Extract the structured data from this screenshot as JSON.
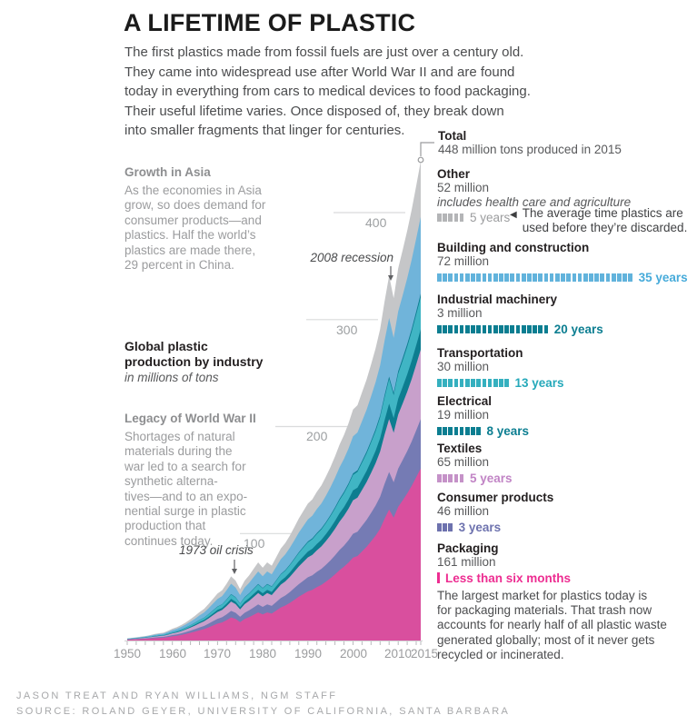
{
  "title": "A LIFETIME OF PLASTIC",
  "intro": "The first plastics made from fossil fuels are just over a century old.\nThey came into widespread use after World War II and are found\ntoday in everything from cars to medical devices to food packaging.\nTheir useful lifetime varies. Once disposed of, they break down\ninto smaller fragments that linger for centuries.",
  "annotations": {
    "growth_asia": {
      "heading": "Growth in Asia",
      "body": "As the economies in Asia\ngrow, so does demand for\nconsumer products—and\nplastics. Half the world’s\nplastics are made there,\n29 percent in China."
    },
    "chart_heading": {
      "main": "Global plastic\nproduction by industry",
      "subtitle": "in millions of tons"
    },
    "legacy_ww2": {
      "heading": "Legacy of World War II",
      "body": "Shortages of natural\nmaterials during the\nwar led to a search for\nsynthetic alterna-\ntives—and to an expo-\nnential surge in plastic\nproduction that\ncontinues today."
    },
    "recession": "2008 recession",
    "oil_crisis": "1973 oil crisis",
    "total": {
      "heading": "Total",
      "desc": "448 million tons produced in 2015"
    },
    "discard_marker": "◀",
    "discard_note": "The average time plastics are\nused before they’re discarded."
  },
  "legend": {
    "entries": [
      {
        "name": "Other",
        "value": "52 million",
        "note": "includes health care and agriculture",
        "ticks": 5,
        "tick_color": "#b4b5b7",
        "years": "5 years",
        "years_color": "#9b9c9e"
      },
      {
        "name": "Building and construction",
        "value": "72 million",
        "ticks": 35,
        "tick_color": "#62b3dc",
        "years": "35 years",
        "years_color": "#47abda"
      },
      {
        "name": "Industrial machinery",
        "value": "3 million",
        "ticks": 20,
        "tick_color": "#0c7e91",
        "years": "20 years",
        "years_color": "#0c7e91"
      },
      {
        "name": "Transportation",
        "value": "30 million",
        "ticks": 13,
        "tick_color": "#35b0bf",
        "years": "13 years",
        "years_color": "#26a9ba"
      },
      {
        "name": "Electrical",
        "value": "19 million",
        "ticks": 8,
        "tick_color": "#0c7e91",
        "years": "8 years",
        "years_color": "#0c7e91"
      },
      {
        "name": "Textiles",
        "value": "65 million",
        "ticks": 5,
        "tick_color": "#c592c8",
        "years": "5 years",
        "years_color": "#c184c5"
      },
      {
        "name": "Consumer products",
        "value": "46 million",
        "ticks": 3,
        "tick_color": "#6d72ae",
        "years": "3 years",
        "years_color": "#6d72ae"
      },
      {
        "name": "Packaging",
        "value": "161 million",
        "ticks": 0,
        "tick_color": "#ed2d91",
        "years": "Less than six months",
        "years_color": "#ed2d91"
      }
    ],
    "packaging_note": "The largest market for plastics today is\nfor packaging materials. That trash now\naccounts for nearly half of all plastic waste\ngenerated globally; most of it never gets\nrecycled or incinerated."
  },
  "axis": {
    "x_labels": [
      "1950",
      "1960",
      "1970",
      "1980",
      "1990",
      "2000",
      "2010",
      "2015"
    ],
    "y_labels": [
      "100",
      "200",
      "300",
      "400"
    ]
  },
  "chart_data": {
    "type": "area",
    "title": "Global plastic production by industry",
    "ylabel": "millions of tons",
    "xlim": [
      1950,
      2015
    ],
    "ylim": [
      0,
      448
    ],
    "grid": "partial-left-ticks",
    "legend_position": "right",
    "annotations": [
      "1973 oil crisis",
      "2008 recession",
      "Total: 448 million tons produced in 2015"
    ],
    "years": [
      1950,
      1951,
      1952,
      1953,
      1954,
      1955,
      1956,
      1957,
      1958,
      1959,
      1960,
      1961,
      1962,
      1963,
      1964,
      1965,
      1966,
      1967,
      1968,
      1969,
      1970,
      1971,
      1972,
      1973,
      1974,
      1975,
      1976,
      1977,
      1978,
      1979,
      1980,
      1981,
      1982,
      1983,
      1984,
      1985,
      1986,
      1987,
      1988,
      1989,
      1990,
      1991,
      1992,
      1993,
      1994,
      1995,
      1996,
      1997,
      1998,
      1999,
      2000,
      2001,
      2002,
      2003,
      2004,
      2005,
      2006,
      2007,
      2008,
      2009,
      2010,
      2011,
      2012,
      2013,
      2014,
      2015
    ],
    "totals": [
      2,
      2.5,
      3,
      3.6,
      4.2,
      5,
      6,
      6.8,
      7.3,
      9,
      11,
      12.5,
      14.5,
      17,
      20,
      23,
      26.5,
      29.5,
      34,
      39,
      44,
      47,
      53,
      60,
      56,
      48,
      56,
      61,
      67,
      73,
      68,
      73,
      70,
      78,
      86,
      91,
      98,
      106,
      114,
      121,
      128,
      132,
      139,
      145,
      153,
      162,
      172,
      183,
      192,
      203,
      216,
      220,
      232,
      244,
      258,
      273,
      291,
      317,
      341,
      320,
      348,
      365,
      383,
      403,
      425,
      448
    ],
    "total_2015": 448,
    "series": [
      {
        "name": "Other",
        "value_2015": 52,
        "lifetime": "5 years",
        "fraction": 0.116,
        "area_color": "#c5c6c8"
      },
      {
        "name": "Building and construction",
        "value_2015": 72,
        "lifetime": "35 years",
        "fraction": 0.1605,
        "area_color": "#70b4da"
      },
      {
        "name": "Industrial machinery",
        "value_2015": 3,
        "lifetime": "20 years",
        "fraction": 0.007,
        "area_color": "#0d7d90"
      },
      {
        "name": "Transportation",
        "value_2015": 30,
        "lifetime": "13 years",
        "fraction": 0.067,
        "area_color": "#40b5c4"
      },
      {
        "name": "Electrical",
        "value_2015": 19,
        "lifetime": "8 years",
        "fraction": 0.0425,
        "area_color": "#0d7d90"
      },
      {
        "name": "Textiles",
        "value_2015": 65,
        "lifetime": "5 years",
        "fraction": 0.145,
        "area_color": "#c8a0cb"
      },
      {
        "name": "Consumer products",
        "value_2015": 46,
        "lifetime": "3 years",
        "fraction": 0.103,
        "area_color": "#757bb4"
      },
      {
        "name": "Packaging",
        "value_2015": 161,
        "lifetime": "Less than six months",
        "fraction": 0.359,
        "area_color": "#d94f9e"
      }
    ]
  },
  "footer": {
    "credit": "JASON TREAT AND RYAN WILLIAMS, NGM STAFF",
    "source": "SOURCE: ROLAND GEYER, UNIVERSITY OF CALIFORNIA, SANTA BARBARA"
  }
}
